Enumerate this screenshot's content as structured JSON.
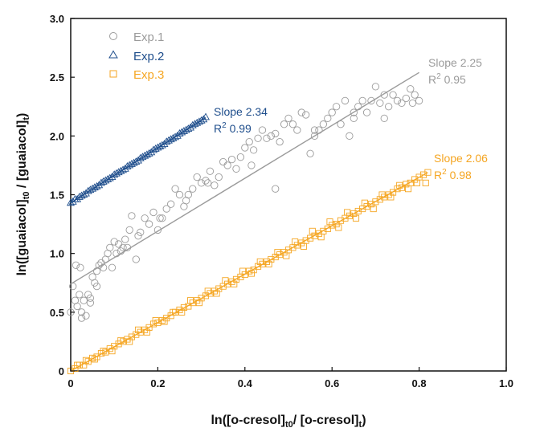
{
  "chart_data": {
    "type": "scatter",
    "title": "",
    "xlabel": {
      "main": "ln([o-cresol]",
      "sub1": "t0",
      "mid": "/ [o-cresol]",
      "sub2": "t",
      "end": ")"
    },
    "ylabel": {
      "main": "ln([guaiacol]",
      "sub1": "t0",
      "mid": " / [guaiacol]",
      "sub2": "t",
      "end": ")"
    },
    "xlim": [
      0,
      1.0
    ],
    "ylim": [
      0,
      3.0
    ],
    "xticks": [
      0,
      0.2,
      0.4,
      0.6,
      0.8,
      1.0
    ],
    "yticks": [
      0,
      0.5,
      1.0,
      1.5,
      2.0,
      2.5,
      3.0
    ],
    "xtick_labels": [
      "0",
      "0.2",
      "0.4",
      "0.6",
      "0.8",
      "1.0"
    ],
    "ytick_labels": [
      "0",
      "0.5",
      "1.0",
      "1.5",
      "2.0",
      "2.5",
      "3.0"
    ],
    "grid": false,
    "legend_position": "top-left",
    "series": [
      {
        "name": "Exp.1",
        "marker": "circle",
        "color": "#9b9b9b",
        "fit": {
          "slope": 2.25,
          "intercept": 0.74,
          "x_range": [
            0,
            0.8
          ]
        },
        "annotation": {
          "slope_text": "Slope 2.25",
          "r2_label": "R",
          "r2_sup": "2",
          "r2_value": " 0.95"
        },
        "x": [
          0.0,
          0.005,
          0.01,
          0.012,
          0.015,
          0.02,
          0.022,
          0.025,
          0.03,
          0.035,
          0.04,
          0.045,
          0.05,
          0.055,
          0.06,
          0.065,
          0.07,
          0.075,
          0.08,
          0.085,
          0.09,
          0.1,
          0.105,
          0.11,
          0.115,
          0.12,
          0.125,
          0.13,
          0.14,
          0.15,
          0.155,
          0.16,
          0.17,
          0.18,
          0.19,
          0.2,
          0.21,
          0.22,
          0.23,
          0.24,
          0.25,
          0.26,
          0.27,
          0.28,
          0.29,
          0.3,
          0.31,
          0.32,
          0.33,
          0.34,
          0.35,
          0.36,
          0.37,
          0.38,
          0.39,
          0.4,
          0.41,
          0.42,
          0.43,
          0.44,
          0.45,
          0.46,
          0.47,
          0.48,
          0.49,
          0.5,
          0.51,
          0.52,
          0.53,
          0.54,
          0.55,
          0.56,
          0.57,
          0.58,
          0.59,
          0.6,
          0.61,
          0.62,
          0.63,
          0.64,
          0.65,
          0.66,
          0.67,
          0.68,
          0.69,
          0.7,
          0.71,
          0.72,
          0.73,
          0.74,
          0.75,
          0.76,
          0.77,
          0.78,
          0.79,
          0.8,
          0.025,
          0.045,
          0.06,
          0.095,
          0.135,
          0.205,
          0.265,
          0.315,
          0.415,
          0.47,
          0.56,
          0.65,
          0.72,
          0.785
        ],
        "y": [
          0.5,
          0.72,
          0.6,
          0.9,
          0.55,
          0.65,
          0.88,
          0.5,
          0.6,
          0.47,
          0.65,
          0.58,
          0.8,
          0.75,
          0.85,
          0.9,
          0.92,
          0.88,
          0.95,
          1.0,
          1.05,
          1.1,
          1.0,
          1.08,
          1.02,
          1.05,
          1.12,
          1.05,
          1.32,
          0.95,
          1.15,
          1.18,
          1.3,
          1.25,
          1.35,
          1.2,
          1.3,
          1.38,
          1.42,
          1.55,
          1.5,
          1.4,
          1.5,
          1.55,
          1.65,
          1.6,
          1.62,
          1.7,
          1.58,
          1.65,
          1.78,
          1.75,
          1.8,
          1.72,
          1.82,
          1.9,
          1.95,
          1.88,
          1.98,
          2.05,
          1.98,
          2.0,
          2.02,
          1.95,
          2.1,
          2.15,
          2.1,
          2.05,
          2.2,
          2.18,
          1.85,
          2.0,
          2.05,
          2.1,
          2.15,
          2.2,
          2.25,
          2.1,
          2.3,
          2.0,
          2.15,
          2.25,
          2.3,
          2.2,
          2.3,
          2.42,
          2.28,
          2.15,
          2.25,
          2.35,
          2.3,
          2.28,
          2.32,
          2.4,
          2.35,
          2.3,
          0.45,
          0.62,
          0.72,
          0.88,
          1.2,
          1.3,
          1.45,
          1.6,
          1.75,
          1.55,
          2.05,
          2.2,
          2.35,
          2.28
        ]
      },
      {
        "name": "Exp.2",
        "marker": "triangle",
        "color": "#1f4e8c",
        "fit": {
          "slope": 2.34,
          "intercept": 1.43,
          "x_range": [
            0,
            0.31
          ]
        },
        "annotation": {
          "slope_text": "Slope 2.34",
          "r2_label": "R",
          "r2_sup": "2",
          "r2_value": " 0.99"
        },
        "x": [
          0.0,
          0.005,
          0.01,
          0.015,
          0.02,
          0.025,
          0.03,
          0.035,
          0.04,
          0.045,
          0.05,
          0.055,
          0.06,
          0.065,
          0.07,
          0.075,
          0.08,
          0.085,
          0.09,
          0.095,
          0.1,
          0.105,
          0.11,
          0.115,
          0.12,
          0.125,
          0.13,
          0.135,
          0.14,
          0.145,
          0.15,
          0.155,
          0.16,
          0.165,
          0.17,
          0.175,
          0.18,
          0.185,
          0.19,
          0.195,
          0.2,
          0.205,
          0.21,
          0.215,
          0.22,
          0.225,
          0.23,
          0.235,
          0.24,
          0.245,
          0.25,
          0.255,
          0.26,
          0.265,
          0.27,
          0.275,
          0.28,
          0.285,
          0.29,
          0.295,
          0.3,
          0.305,
          0.31
        ],
        "y": [
          1.43,
          1.44,
          1.46,
          1.46,
          1.48,
          1.49,
          1.5,
          1.51,
          1.53,
          1.54,
          1.55,
          1.56,
          1.57,
          1.58,
          1.6,
          1.61,
          1.62,
          1.63,
          1.64,
          1.65,
          1.67,
          1.68,
          1.69,
          1.7,
          1.71,
          1.72,
          1.74,
          1.75,
          1.76,
          1.77,
          1.78,
          1.79,
          1.81,
          1.82,
          1.83,
          1.84,
          1.85,
          1.86,
          1.88,
          1.89,
          1.9,
          1.91,
          1.92,
          1.93,
          1.95,
          1.96,
          1.97,
          1.98,
          1.99,
          2.0,
          2.02,
          2.03,
          2.04,
          2.05,
          2.06,
          2.07,
          2.09,
          2.1,
          2.11,
          2.12,
          2.13,
          2.14,
          2.16
        ]
      },
      {
        "name": "Exp.3",
        "marker": "square",
        "color": "#f5a623",
        "fit": {
          "slope": 2.06,
          "intercept": 0.0,
          "x_range": [
            0,
            0.82
          ]
        },
        "annotation": {
          "slope_text": "Slope 2.06",
          "r2_label": "R",
          "r2_sup": "2",
          "r2_value": " 0.98"
        },
        "x": [
          0.0,
          0.01,
          0.02,
          0.03,
          0.04,
          0.05,
          0.06,
          0.07,
          0.08,
          0.09,
          0.1,
          0.11,
          0.12,
          0.13,
          0.14,
          0.15,
          0.16,
          0.17,
          0.18,
          0.19,
          0.2,
          0.21,
          0.22,
          0.23,
          0.24,
          0.25,
          0.26,
          0.27,
          0.28,
          0.29,
          0.3,
          0.31,
          0.32,
          0.33,
          0.34,
          0.35,
          0.36,
          0.37,
          0.38,
          0.39,
          0.4,
          0.41,
          0.42,
          0.43,
          0.44,
          0.45,
          0.46,
          0.47,
          0.48,
          0.49,
          0.5,
          0.51,
          0.52,
          0.53,
          0.54,
          0.55,
          0.56,
          0.57,
          0.58,
          0.59,
          0.6,
          0.61,
          0.62,
          0.63,
          0.64,
          0.65,
          0.66,
          0.67,
          0.68,
          0.69,
          0.7,
          0.71,
          0.72,
          0.73,
          0.74,
          0.75,
          0.76,
          0.77,
          0.78,
          0.79,
          0.8,
          0.81,
          0.82,
          0.015,
          0.035,
          0.055,
          0.075,
          0.095,
          0.115,
          0.135,
          0.155,
          0.175,
          0.195,
          0.215,
          0.235,
          0.255,
          0.275,
          0.295,
          0.315,
          0.335,
          0.355,
          0.375,
          0.395,
          0.415,
          0.435,
          0.455,
          0.475,
          0.495,
          0.515,
          0.535,
          0.555,
          0.575,
          0.595,
          0.615,
          0.635,
          0.655,
          0.675,
          0.695,
          0.715,
          0.735,
          0.755,
          0.775,
          0.795,
          0.815
        ],
        "y": [
          0.0,
          0.02,
          0.05,
          0.05,
          0.08,
          0.11,
          0.12,
          0.15,
          0.16,
          0.19,
          0.21,
          0.23,
          0.25,
          0.27,
          0.29,
          0.31,
          0.33,
          0.35,
          0.37,
          0.4,
          0.41,
          0.43,
          0.45,
          0.47,
          0.5,
          0.52,
          0.54,
          0.55,
          0.58,
          0.6,
          0.62,
          0.64,
          0.66,
          0.68,
          0.7,
          0.72,
          0.74,
          0.76,
          0.78,
          0.8,
          0.82,
          0.85,
          0.86,
          0.89,
          0.91,
          0.93,
          0.95,
          0.97,
          0.99,
          1.01,
          1.03,
          1.05,
          1.07,
          1.09,
          1.11,
          1.13,
          1.15,
          1.17,
          1.19,
          1.21,
          1.24,
          1.25,
          1.28,
          1.3,
          1.32,
          1.34,
          1.36,
          1.38,
          1.4,
          1.42,
          1.44,
          1.46,
          1.48,
          1.5,
          1.52,
          1.55,
          1.56,
          1.59,
          1.6,
          1.63,
          1.65,
          1.67,
          1.69,
          0.05,
          0.09,
          0.1,
          0.17,
          0.17,
          0.26,
          0.25,
          0.35,
          0.33,
          0.43,
          0.42,
          0.5,
          0.5,
          0.6,
          0.58,
          0.68,
          0.66,
          0.77,
          0.74,
          0.85,
          0.83,
          0.93,
          0.91,
          1.01,
          0.98,
          1.1,
          1.06,
          1.19,
          1.14,
          1.27,
          1.22,
          1.35,
          1.3,
          1.43,
          1.38,
          1.5,
          1.48,
          1.58,
          1.55,
          1.6,
          1.6
        ]
      }
    ]
  }
}
